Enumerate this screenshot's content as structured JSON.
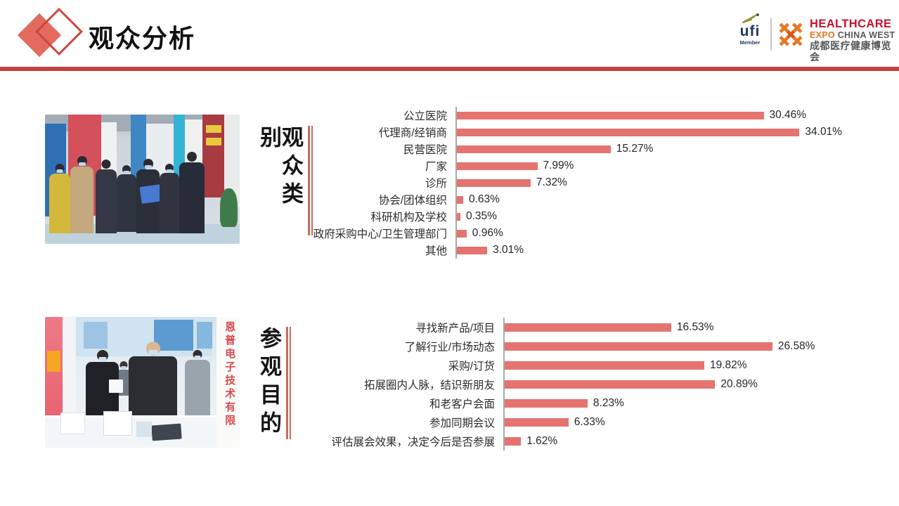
{
  "header": {
    "title": "观众分析",
    "ufi_logo": {
      "name": "ufi",
      "member": "Member"
    },
    "expo_logo": {
      "line1": "HEALTHCARE",
      "line2_orange": "EXPO",
      "line2_gray": "CHINA WEST",
      "line3": "成都医疗健康博览会"
    }
  },
  "sections": [
    {
      "side_title": "观众类别"
    },
    {
      "side_title": "参观目的",
      "photo_banner_text": "恩普电子技术有限"
    }
  ],
  "colors": {
    "accent_rule": "#c0423a",
    "bar": "#e5736f",
    "axis": "#a8a8a8",
    "side_lines": "#c96a62",
    "expo_red": "#c8102e",
    "expo_orange": "#e87722",
    "ufi_navy": "#203864"
  },
  "chart_data": [
    {
      "type": "bar",
      "orientation": "horizontal",
      "title": "观众类别",
      "categories": [
        "公立医院",
        "代理商/经销商",
        "民营医院",
        "厂家",
        "诊所",
        "协会/团体组织",
        "科研机构及学校",
        "政府采购中心/卫生管理部门",
        "其他"
      ],
      "values": [
        30.46,
        34.01,
        15.27,
        7.99,
        7.32,
        0.63,
        0.35,
        0.96,
        3.01
      ],
      "value_labels": [
        "30.46%",
        "34.01%",
        "15.27%",
        "7.99%",
        "7.32%",
        "0.63%",
        "0.35%",
        "0.96%",
        "3.01%"
      ],
      "xlim": [
        0,
        40
      ],
      "grid": false,
      "legend": false,
      "bar_color": "#e5736f"
    },
    {
      "type": "bar",
      "orientation": "horizontal",
      "title": "参观目的",
      "categories": [
        "寻找新产品/项目",
        "了解行业/市场动态",
        "采购/订货",
        "拓展圈内人脉，结识新朋友",
        "和老客户会面",
        "参加同期会议",
        "评估展会效果，决定今后是否参展"
      ],
      "values": [
        16.53,
        26.58,
        19.82,
        20.89,
        8.23,
        6.33,
        1.62
      ],
      "value_labels": [
        "16.53%",
        "26.58%",
        "19.82%",
        "20.89%",
        "8.23%",
        "6.33%",
        "1.62%"
      ],
      "xlim": [
        0,
        40
      ],
      "grid": false,
      "legend": false,
      "bar_color": "#e5736f"
    }
  ]
}
